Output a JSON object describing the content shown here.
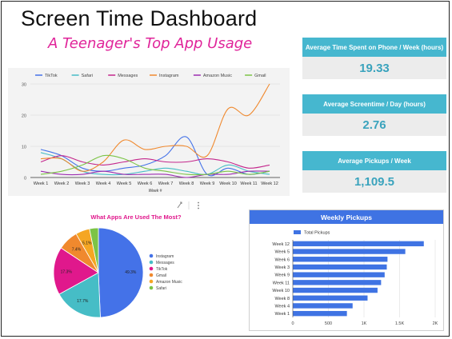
{
  "header": {
    "title": "Screen Time Dashboard",
    "subtitle": "A Teenager's Top App Usage"
  },
  "stats": [
    {
      "label": "Average Time Spent on Phone / Week (hours)",
      "value": "19.33"
    },
    {
      "label": "Average Screentime / Day (hours)",
      "value": "2.76"
    },
    {
      "label": "Average Pickups / Week",
      "value": "1,109.5"
    }
  ],
  "pie_toolbar": {
    "icon1": "chart-edit-icon",
    "icon2": "more-options-icon"
  },
  "chart_data": [
    {
      "type": "line",
      "title": "",
      "xlabel": "Week #",
      "ylabel": "",
      "categories": [
        "Week 1",
        "Week 2",
        "Week 3",
        "Week 4",
        "Week 5",
        "Week 6",
        "Week 7",
        "Week 8",
        "Week 9",
        "Week 10",
        "Week 11",
        "Week 12"
      ],
      "ylim": [
        0,
        30
      ],
      "yticks": [
        0,
        10,
        20,
        30
      ],
      "ytick_labels": [
        "0",
        "10",
        "20",
        "30"
      ],
      "grid": true,
      "legend": "top",
      "series": [
        {
          "name": "TikTok",
          "color": "#4472e8",
          "values": [
            9,
            7,
            3,
            2,
            3,
            4,
            7,
            13,
            1,
            3,
            1,
            2
          ]
        },
        {
          "name": "Safari",
          "color": "#46bdc6",
          "values": [
            8,
            6,
            2,
            1,
            1,
            2,
            3,
            2,
            1,
            4,
            2,
            1
          ]
        },
        {
          "name": "Messages",
          "color": "#c4278c",
          "values": [
            5,
            7,
            5,
            4,
            5,
            6,
            5,
            5,
            6,
            5,
            3,
            4
          ]
        },
        {
          "name": "Instagram",
          "color": "#f0892e",
          "values": [
            6,
            6,
            2,
            5,
            12,
            9,
            10,
            10,
            7,
            22,
            20,
            30
          ]
        },
        {
          "name": "Amazon Music",
          "color": "#9c2cb0",
          "values": [
            2,
            1,
            1,
            2,
            1,
            1,
            1,
            0,
            1,
            1,
            2,
            2
          ]
        },
        {
          "name": "Gmail",
          "color": "#7cc446",
          "values": [
            1,
            2,
            4,
            7,
            6,
            3,
            2,
            1,
            1,
            2,
            1,
            2
          ]
        }
      ]
    },
    {
      "type": "pie",
      "title": "What Apps Are Used The Most?",
      "legend": "right",
      "slices": [
        {
          "name": "Instagram",
          "value": 49.3,
          "label": "49.3%",
          "color": "#4472e8"
        },
        {
          "name": "Messages",
          "value": 17.7,
          "label": "17.7%",
          "color": "#46bdc6"
        },
        {
          "name": "TikTok",
          "value": 17.3,
          "label": "17.3%",
          "color": "#e0188c"
        },
        {
          "name": "Gmail",
          "value": 7.4,
          "label": "7.4%",
          "color": "#f0892e"
        },
        {
          "name": "Amazon Music",
          "value": 5.1,
          "label": "5.1%",
          "color": "#f5a623"
        },
        {
          "name": "Safari",
          "value": 3.2,
          "label": "",
          "color": "#7cc446"
        }
      ]
    },
    {
      "type": "bar",
      "orientation": "horizontal",
      "title": "Weekly Pickups",
      "legend": "top-left",
      "series_name": "Total Pickups",
      "color": "#3f73e3",
      "categories": [
        "Week 12",
        "Week 5",
        "Week 6",
        "Week 3",
        "Week 9",
        "Week 11",
        "Week 10",
        "Week 8",
        "Week 4",
        "Week 1"
      ],
      "values": [
        1840,
        1580,
        1330,
        1320,
        1290,
        1240,
        1190,
        1050,
        840,
        760
      ],
      "xlim": [
        0,
        2000
      ],
      "xticks": [
        0,
        500,
        1000,
        1500,
        2000
      ],
      "xtick_labels": [
        "0",
        "500",
        "1K",
        "1.5K",
        "2K"
      ]
    }
  ]
}
